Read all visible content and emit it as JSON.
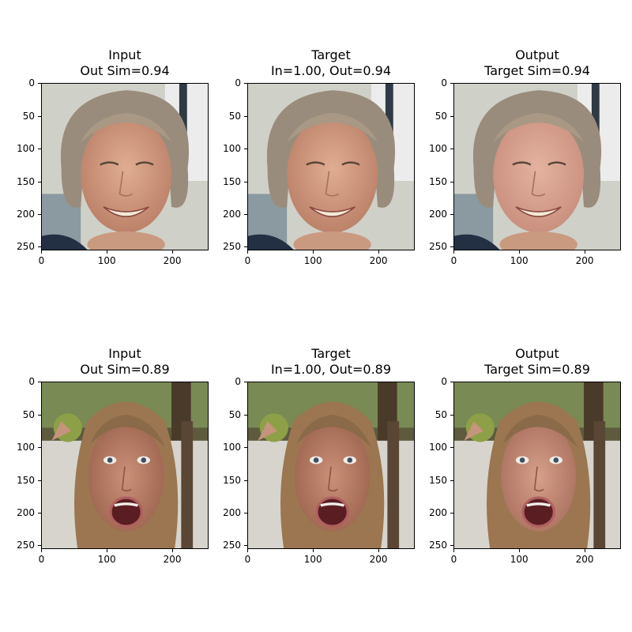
{
  "panels": [
    {
      "title": "Input\nOut Sim=0.94",
      "subject": "older-woman-smiling"
    },
    {
      "title": "Target\nIn=1.00, Out=0.94",
      "subject": "older-woman-smiling"
    },
    {
      "title": "Output\nTarget Sim=0.94",
      "subject": "older-woman-smiling-smoothed"
    },
    {
      "title": "Input\nOut Sim=0.89",
      "subject": "young-woman-surprised"
    },
    {
      "title": "Target\nIn=1.00, Out=0.89",
      "subject": "young-woman-surprised"
    },
    {
      "title": "Output\nTarget Sim=0.89",
      "subject": "young-woman-surprised-smoothed"
    }
  ],
  "axis": {
    "y_ticks": [
      "0",
      "50",
      "100",
      "150",
      "200",
      "250"
    ],
    "x_ticks": [
      "0",
      "100",
      "200"
    ],
    "y_values": [
      0,
      50,
      100,
      150,
      200,
      250
    ],
    "x_values": [
      0,
      100,
      200
    ],
    "extent": 256
  },
  "colors": {
    "woman1_hair": "#9a8c7c",
    "woman1_skin": "#d9a58a",
    "woman1_bg": "#cfd0c8",
    "woman2_hair": "#9b7650",
    "woman2_skin": "#c9927a",
    "woman2_bg": "#5d5a3e"
  }
}
